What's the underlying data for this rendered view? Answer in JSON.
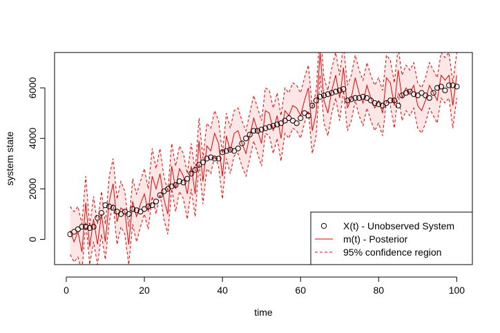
{
  "chart_data": {
    "type": "line",
    "title": "",
    "xlabel": "time",
    "ylabel": "system state",
    "xlim": [
      -3,
      104
    ],
    "ylim": [
      -1000,
      7400
    ],
    "x_ticks": [
      0,
      20,
      40,
      60,
      80,
      100
    ],
    "y_ticks": [
      0,
      2000,
      4000,
      6000
    ],
    "x_tick_labels": [
      "0",
      "20",
      "40",
      "60",
      "80",
      "100"
    ],
    "y_tick_labels": [
      "0",
      "2000",
      "4000",
      "6000"
    ],
    "grid": false,
    "legend_position": "bottom-right",
    "legend": [
      {
        "label": "X(t) - Unobserved System",
        "style": "points"
      },
      {
        "label": "m(t) - Posterior",
        "style": "solid"
      },
      {
        "label": "95% confidence region",
        "style": "dashed"
      }
    ],
    "colors": {
      "points": "#000000",
      "posterior": "#e00000",
      "confidence": "#e00000",
      "band_fill": "#fde6e6",
      "axis": "#000000"
    },
    "x": [
      1,
      2,
      3,
      4,
      5,
      6,
      7,
      8,
      9,
      10,
      11,
      12,
      13,
      14,
      15,
      16,
      17,
      18,
      19,
      20,
      21,
      22,
      23,
      24,
      25,
      26,
      27,
      28,
      29,
      30,
      31,
      32,
      33,
      34,
      35,
      36,
      37,
      38,
      39,
      40,
      41,
      42,
      43,
      44,
      45,
      46,
      47,
      48,
      49,
      50,
      51,
      52,
      53,
      54,
      55,
      56,
      57,
      58,
      59,
      60,
      61,
      62,
      63,
      64,
      65,
      66,
      67,
      68,
      69,
      70,
      71,
      72,
      73,
      74,
      75,
      76,
      77,
      78,
      79,
      80,
      81,
      82,
      83,
      84,
      85,
      86,
      87,
      88,
      89,
      90,
      91,
      92,
      93,
      94,
      95,
      96,
      97,
      98,
      99,
      100
    ],
    "series": [
      {
        "name": "X(t) - Unobserved System",
        "style": "points",
        "values": [
          200,
          300,
          400,
          500,
          500,
          450,
          500,
          850,
          1050,
          1350,
          1300,
          1250,
          1100,
          1000,
          1100,
          1000,
          1200,
          1150,
          1100,
          1200,
          1300,
          1350,
          1500,
          1750,
          1900,
          2000,
          2100,
          2150,
          2300,
          2250,
          2400,
          2600,
          2750,
          2950,
          3050,
          3200,
          3250,
          3200,
          3200,
          3450,
          3500,
          3550,
          3500,
          3600,
          3800,
          4000,
          4150,
          4300,
          4300,
          4350,
          4400,
          4450,
          4500,
          4550,
          4600,
          4700,
          4800,
          4700,
          4600,
          4800,
          5000,
          4900,
          5300,
          5500,
          5650,
          5700,
          5750,
          5800,
          5850,
          5900,
          5950,
          5500,
          5550,
          5600,
          5600,
          5650,
          5600,
          5500,
          5400,
          5350,
          5300,
          5400,
          5500,
          5500,
          5300,
          5700,
          5800,
          5850,
          5750,
          5700,
          5800,
          5700,
          5600,
          5800,
          6000,
          6050,
          5900,
          6100,
          6100,
          6050
        ]
      },
      {
        "name": "m(t) - Posterior",
        "style": "solid",
        "values": [
          350,
          -100,
          300,
          -500,
          1450,
          -300,
          800,
          -200,
          1000,
          -100,
          1500,
          2200,
          700,
          1250,
          1100,
          -200,
          1500,
          900,
          1400,
          1800,
          1100,
          2500,
          2000,
          2600,
          1600,
          1000,
          2900,
          2000,
          2800,
          2500,
          1800,
          2900,
          1800,
          3900,
          2300,
          3700,
          3500,
          4200,
          3800,
          2500,
          4100,
          3500,
          4200,
          4300,
          3800,
          3400,
          4100,
          4800,
          4300,
          3800,
          5100,
          5000,
          4300,
          4900,
          4000,
          5100,
          4900,
          5300,
          5200,
          4900,
          5500,
          6000,
          4300,
          5000,
          7400,
          5500,
          5000,
          5900,
          6500,
          5600,
          6800,
          5200,
          5600,
          6400,
          5800,
          5400,
          6100,
          5600,
          5200,
          5500,
          5000,
          6400,
          6200,
          5300,
          6700,
          5600,
          6000,
          5800,
          6100,
          5300,
          5100,
          5500,
          6100,
          5800,
          5500,
          6500,
          6300,
          6500,
          5300,
          6500
        ]
      },
      {
        "name": "95% confidence region",
        "style": "dashed",
        "values": [
          [
            -600,
            1300
          ],
          [
            -900,
            1100
          ],
          [
            -700,
            1300
          ],
          [
            -1300,
            600
          ],
          [
            700,
            2500
          ],
          [
            -1000,
            500
          ],
          [
            -100,
            1700
          ],
          [
            -1000,
            600
          ],
          [
            200,
            1900
          ],
          [
            -800,
            600
          ],
          [
            700,
            2500
          ],
          [
            1400,
            3200
          ],
          [
            -200,
            1600
          ],
          [
            500,
            2300
          ],
          [
            200,
            1900
          ],
          [
            -1000,
            500
          ],
          [
            600,
            2400
          ],
          [
            -100,
            1800
          ],
          [
            500,
            2300
          ],
          [
            1000,
            2800
          ],
          [
            400,
            2000
          ],
          [
            1700,
            3600
          ],
          [
            1000,
            2800
          ],
          [
            1800,
            3600
          ],
          [
            800,
            2500
          ],
          [
            200,
            1900
          ],
          [
            2000,
            3800
          ],
          [
            1100,
            2900
          ],
          [
            1900,
            3700
          ],
          [
            1600,
            3400
          ],
          [
            800,
            2600
          ],
          [
            2000,
            3800
          ],
          [
            900,
            2700
          ],
          [
            3000,
            4800
          ],
          [
            1400,
            3200
          ],
          [
            2800,
            4600
          ],
          [
            2600,
            4400
          ],
          [
            3300,
            5100
          ],
          [
            2900,
            4700
          ],
          [
            1600,
            3400
          ],
          [
            3200,
            5000
          ],
          [
            2600,
            4400
          ],
          [
            3300,
            5100
          ],
          [
            3400,
            5200
          ],
          [
            2900,
            4700
          ],
          [
            2500,
            4300
          ],
          [
            3200,
            5000
          ],
          [
            3900,
            5700
          ],
          [
            3400,
            5200
          ],
          [
            2900,
            4700
          ],
          [
            4200,
            6000
          ],
          [
            4100,
            5900
          ],
          [
            3400,
            5200
          ],
          [
            4000,
            5800
          ],
          [
            3100,
            4900
          ],
          [
            4200,
            6000
          ],
          [
            4000,
            5800
          ],
          [
            4400,
            6200
          ],
          [
            4300,
            6100
          ],
          [
            4000,
            5800
          ],
          [
            4600,
            6400
          ],
          [
            5100,
            6900
          ],
          [
            3400,
            5200
          ],
          [
            4100,
            5900
          ],
          [
            6500,
            8300
          ],
          [
            4600,
            6400
          ],
          [
            4100,
            5900
          ],
          [
            5000,
            6800
          ],
          [
            5600,
            7400
          ],
          [
            4700,
            6500
          ],
          [
            5900,
            7700
          ],
          [
            4300,
            6100
          ],
          [
            4700,
            6500
          ],
          [
            5500,
            7300
          ],
          [
            4900,
            6700
          ],
          [
            4500,
            6300
          ],
          [
            5200,
            7000
          ],
          [
            4700,
            6500
          ],
          [
            4300,
            6100
          ],
          [
            4600,
            6400
          ],
          [
            4100,
            5900
          ],
          [
            5500,
            7300
          ],
          [
            5300,
            7100
          ],
          [
            4400,
            6200
          ],
          [
            5800,
            7600
          ],
          [
            4700,
            6500
          ],
          [
            5100,
            6900
          ],
          [
            4900,
            6700
          ],
          [
            5200,
            7000
          ],
          [
            4400,
            6200
          ],
          [
            4200,
            6000
          ],
          [
            4600,
            6400
          ],
          [
            5200,
            7000
          ],
          [
            4900,
            6700
          ],
          [
            4600,
            6400
          ],
          [
            5600,
            7400
          ],
          [
            5400,
            7200
          ],
          [
            5600,
            7400
          ],
          [
            4400,
            6200
          ],
          [
            5600,
            7400
          ]
        ]
      }
    ]
  }
}
